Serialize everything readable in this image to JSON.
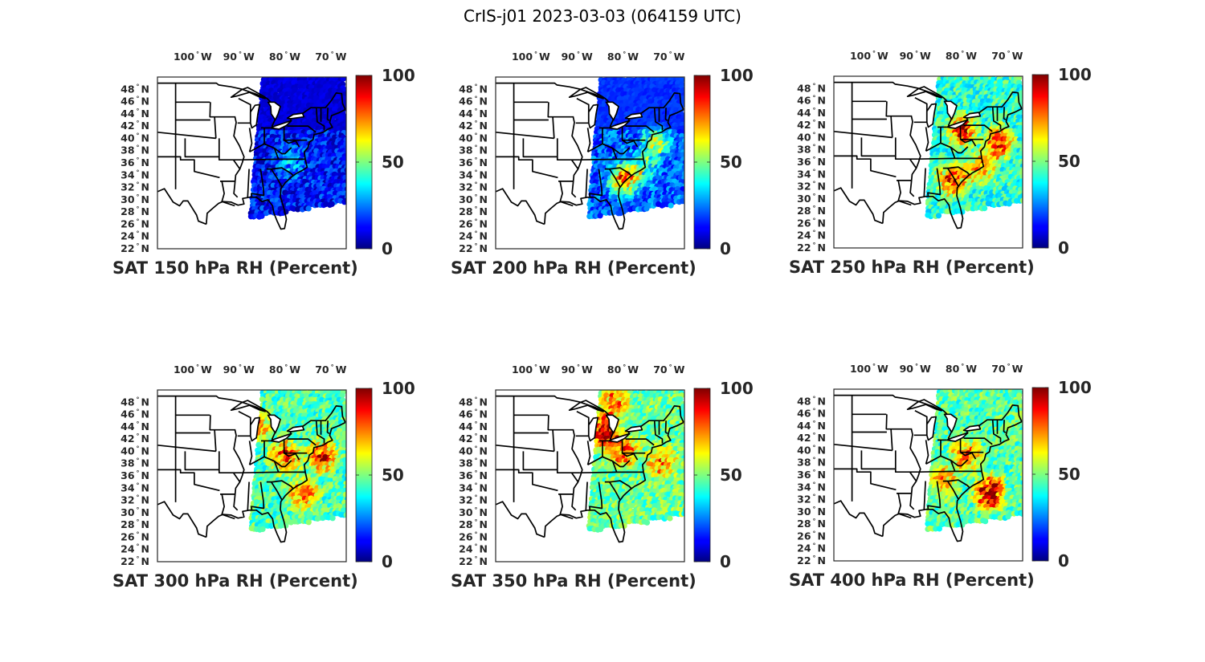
{
  "title": "CrIS-j01 2023-03-03 (064159 UTC)",
  "map_extent": {
    "lon_min": -108,
    "lon_max": -67,
    "lat_min": 22,
    "lat_max": 50
  },
  "lon_ticks": [
    {
      "value": -100,
      "num": "100",
      "hemi": "W"
    },
    {
      "value": -90,
      "num": "90",
      "hemi": "W"
    },
    {
      "value": -80,
      "num": "80",
      "hemi": "W"
    },
    {
      "value": -70,
      "num": "70",
      "hemi": "W"
    }
  ],
  "lat_ticks": [
    {
      "value": 48,
      "num": "48",
      "hemi": "N"
    },
    {
      "value": 46,
      "num": "46",
      "hemi": "N"
    },
    {
      "value": 44,
      "num": "44",
      "hemi": "N"
    },
    {
      "value": 42,
      "num": "42",
      "hemi": "N"
    },
    {
      "value": 40,
      "num": "40",
      "hemi": "N"
    },
    {
      "value": 38,
      "num": "38",
      "hemi": "N"
    },
    {
      "value": 36,
      "num": "36",
      "hemi": "N"
    },
    {
      "value": 34,
      "num": "34",
      "hemi": "N"
    },
    {
      "value": 32,
      "num": "32",
      "hemi": "N"
    },
    {
      "value": 30,
      "num": "30",
      "hemi": "N"
    },
    {
      "value": 28,
      "num": "28",
      "hemi": "N"
    },
    {
      "value": 26,
      "num": "26",
      "hemi": "N"
    },
    {
      "value": 24,
      "num": "24",
      "hemi": "N"
    },
    {
      "value": 22,
      "num": "22",
      "hemi": "N"
    }
  ],
  "colorbar": {
    "colormap": "jet",
    "min": 0,
    "max": 100,
    "ticks": [
      "100",
      "50",
      "0"
    ]
  },
  "panels": [
    {
      "id": "p150",
      "title": "SAT 150 hPa RH (Percent)",
      "pressure_hPa": 150,
      "mean_rh": 14
    },
    {
      "id": "p200",
      "title": "SAT 200 hPa RH (Percent)",
      "pressure_hPa": 200,
      "mean_rh": 22
    },
    {
      "id": "p250",
      "title": "SAT 250 hPa RH (Percent)",
      "pressure_hPa": 250,
      "mean_rh": 42
    },
    {
      "id": "p300",
      "title": "SAT 300 hPa RH (Percent)",
      "pressure_hPa": 300,
      "mean_rh": 45
    },
    {
      "id": "p350",
      "title": "SAT 350 hPa RH (Percent)",
      "pressure_hPa": 350,
      "mean_rh": 48
    },
    {
      "id": "p400",
      "title": "SAT 400 hPa RH (Percent)",
      "pressure_hPa": 400,
      "mean_rh": 46
    }
  ]
}
